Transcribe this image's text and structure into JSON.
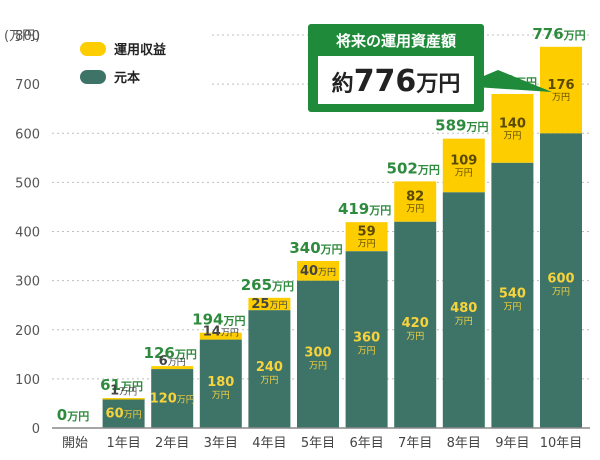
{
  "chart_data": {
    "type": "bar",
    "stacked": true,
    "title": "",
    "ylabel": "(万円)",
    "xlabel": "",
    "ylim": [
      0,
      800
    ],
    "yticks": [
      0,
      100,
      200,
      300,
      400,
      500,
      600,
      700,
      800
    ],
    "grid": true,
    "categories": [
      "開始",
      "1年目",
      "2年目",
      "3年目",
      "4年目",
      "5年目",
      "6年目",
      "7年目",
      "8年目",
      "9年目",
      "10年目"
    ],
    "unit": "万円",
    "series": [
      {
        "name": "元本",
        "color": "#3e7468",
        "values": [
          0,
          60,
          120,
          180,
          240,
          300,
          360,
          420,
          480,
          540,
          600
        ]
      },
      {
        "name": "運用収益",
        "color": "#fdcd00",
        "values": [
          0,
          1,
          6,
          14,
          25,
          40,
          59,
          82,
          109,
          140,
          176
        ]
      }
    ],
    "totals": [
      0,
      61,
      126,
      194,
      265,
      340,
      419,
      502,
      589,
      680,
      776
    ],
    "legend": {
      "placement": "top-left",
      "order": [
        "運用収益",
        "元本"
      ]
    },
    "callout": {
      "header": "将来の運用資産額",
      "prefix": "約",
      "value": "776",
      "unit": "万円",
      "color": "#1f8a3a"
    }
  }
}
